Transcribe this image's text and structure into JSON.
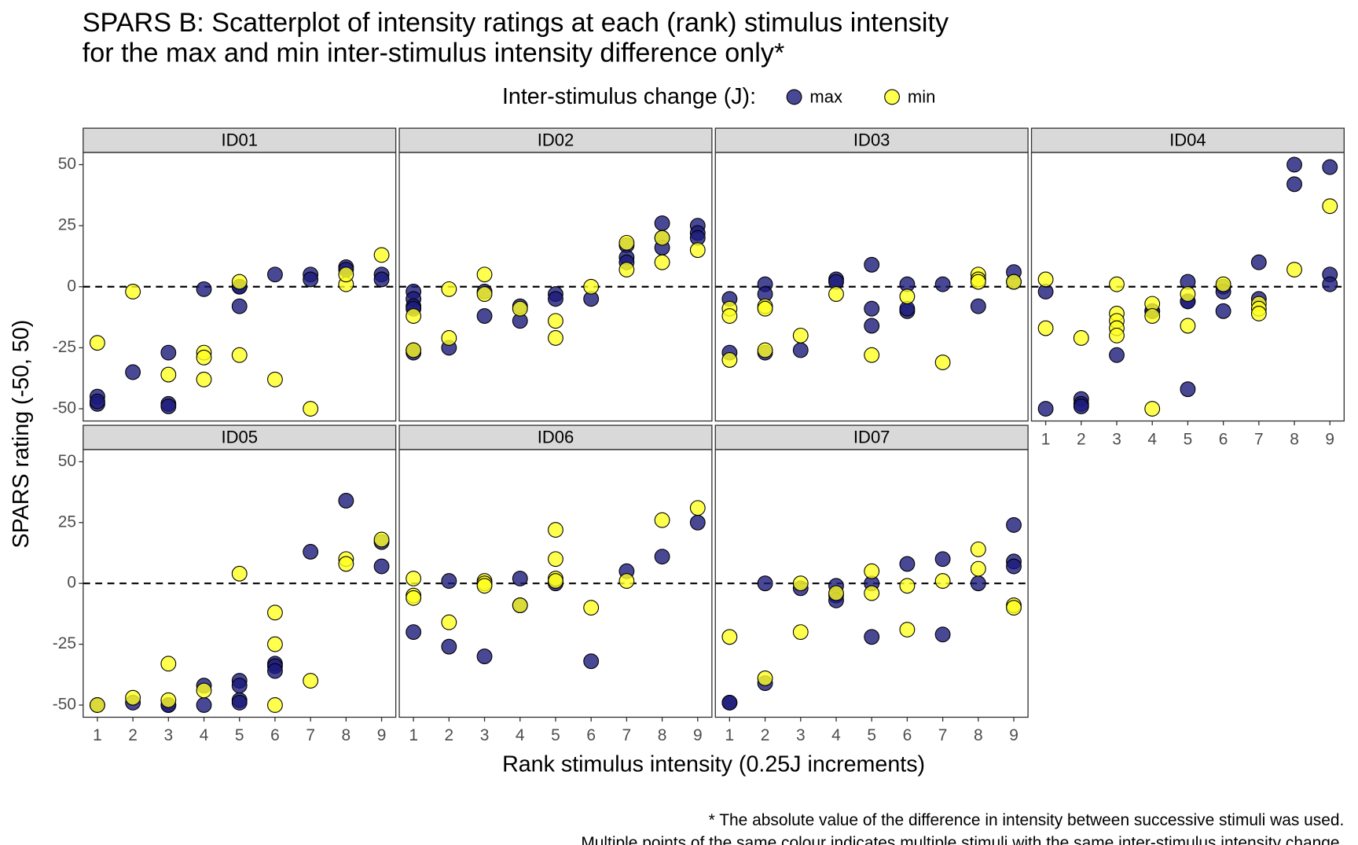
{
  "title": [
    "SPARS B: Scatterplot of intensity ratings at each (rank) stimulus intensity",
    "for the max and min inter-stimulus intensity difference only*"
  ],
  "legend": {
    "title": "Inter-stimulus change (J):",
    "entries": [
      {
        "name": "max",
        "color": "#1c1a7a"
      },
      {
        "name": "min",
        "color": "#ffff22"
      }
    ]
  },
  "point_alpha": 0.8,
  "x_label": "Rank stimulus intensity (0.25J increments)",
  "y_label": "SPARS rating (-50, 50)",
  "notes": [
    "* The absolute value of the difference in intensity between successive stimuli was used.",
    "Multiple points of the same colour indicates multiple stimuli with the same inter-stimulus intensity change."
  ],
  "chart_data": [
    {
      "type": "scatter",
      "title": "ID01",
      "xlim": [
        0.6,
        9.4
      ],
      "ylim": [
        -55,
        55
      ],
      "yticks": [
        -50,
        -25,
        0,
        25,
        50
      ],
      "hline": 0,
      "series": [
        {
          "x": [
            1,
            1,
            1,
            2,
            3,
            3,
            3,
            4,
            5,
            5,
            5,
            6,
            7,
            7,
            8,
            8,
            9,
            9
          ],
          "y": [
            -45,
            -48,
            -47,
            -35,
            -27,
            -48,
            -49,
            -1,
            0,
            -8,
            0,
            5,
            5,
            3,
            8,
            7,
            5,
            3
          ]
        },
        {
          "x": [
            1,
            2,
            3,
            4,
            4,
            4,
            5,
            5,
            6,
            7,
            8,
            8,
            9
          ],
          "y": [
            -23,
            -2,
            -36,
            -27,
            -29,
            -38,
            2,
            -28,
            -38,
            -50,
            1,
            5,
            13
          ]
        }
      ]
    },
    {
      "type": "scatter",
      "title": "ID02",
      "xlim": [
        0.6,
        9.4
      ],
      "ylim": [
        -55,
        55
      ],
      "hline": 0,
      "series": [
        {
          "x": [
            1,
            1,
            1,
            1,
            1,
            1,
            2,
            3,
            3,
            4,
            4,
            5,
            5,
            6,
            7,
            7,
            7,
            8,
            8,
            8,
            9,
            9,
            9
          ],
          "y": [
            -2,
            -5,
            -8,
            -9,
            -27,
            -26,
            -25,
            -2,
            -12,
            -8,
            -14,
            -3,
            -5,
            -5,
            17,
            12,
            10,
            26,
            20,
            16,
            25,
            22,
            20
          ]
        },
        {
          "x": [
            1,
            1,
            2,
            2,
            3,
            3,
            4,
            5,
            5,
            6,
            7,
            7,
            8,
            8,
            9
          ],
          "y": [
            -12,
            -26,
            -1,
            -21,
            5,
            -3,
            -9,
            -14,
            -21,
            0,
            18,
            7,
            20,
            10,
            15
          ]
        }
      ]
    },
    {
      "type": "scatter",
      "title": "ID03",
      "xlim": [
        0.6,
        9.4
      ],
      "ylim": [
        -55,
        55
      ],
      "hline": 0,
      "series": [
        {
          "x": [
            1,
            1,
            2,
            2,
            2,
            3,
            4,
            4,
            5,
            5,
            5,
            6,
            6,
            6,
            7,
            8,
            9,
            9
          ],
          "y": [
            -5,
            -27,
            1,
            -3,
            -27,
            -26,
            3,
            2,
            9,
            -9,
            -16,
            1,
            -10,
            -9,
            1,
            -8,
            6,
            2
          ]
        },
        {
          "x": [
            1,
            1,
            1,
            2,
            2,
            2,
            3,
            4,
            5,
            6,
            7,
            8,
            8,
            8,
            9
          ],
          "y": [
            -9,
            -12,
            -30,
            -8,
            -9,
            -26,
            -20,
            -3,
            -28,
            -4,
            -31,
            5,
            3,
            2,
            2
          ]
        }
      ]
    },
    {
      "type": "scatter",
      "title": "ID04",
      "xlim": [
        0.6,
        9.4
      ],
      "ylim": [
        -55,
        55
      ],
      "xticks": [
        1,
        2,
        3,
        4,
        5,
        6,
        7,
        8,
        9
      ],
      "hline": 0,
      "series": [
        {
          "x": [
            1,
            1,
            2,
            2,
            2,
            3,
            4,
            4,
            5,
            5,
            5,
            5,
            6,
            6,
            6,
            7,
            7,
            8,
            8,
            9,
            9,
            9
          ],
          "y": [
            -2,
            -50,
            -46,
            -48,
            -49,
            -28,
            -10,
            -10,
            2,
            -6,
            -6,
            -42,
            0,
            -2,
            -10,
            10,
            -5,
            50,
            42,
            49,
            5,
            1
          ]
        },
        {
          "x": [
            1,
            1,
            2,
            3,
            3,
            3,
            3,
            3,
            4,
            4,
            4,
            5,
            5,
            6,
            7,
            7,
            7,
            8,
            9
          ],
          "y": [
            3,
            -17,
            -21,
            1,
            -11,
            -14,
            -17,
            -20,
            -7,
            -12,
            -50,
            -3,
            -16,
            1,
            -7,
            -9,
            -11,
            7,
            33
          ]
        }
      ]
    },
    {
      "type": "scatter",
      "title": "ID05",
      "xlim": [
        0.6,
        9.4
      ],
      "ylim": [
        -55,
        55
      ],
      "xticks": [
        1,
        2,
        3,
        4,
        5,
        6,
        7,
        8,
        9
      ],
      "yticks": [
        -50,
        -25,
        0,
        25,
        50
      ],
      "hline": 0,
      "series": [
        {
          "x": [
            1,
            2,
            3,
            3,
            4,
            4,
            5,
            5,
            5,
            5,
            6,
            6,
            6,
            7,
            8,
            9,
            9
          ],
          "y": [
            -50,
            -49,
            -50,
            -50,
            -42,
            -50,
            -40,
            -42,
            -48,
            -49,
            -33,
            -34,
            -36,
            13,
            34,
            17,
            7
          ]
        },
        {
          "x": [
            1,
            2,
            3,
            3,
            4,
            5,
            6,
            6,
            6,
            7,
            8,
            8,
            9
          ],
          "y": [
            -50,
            -47,
            -33,
            -48,
            -44,
            4,
            -12,
            -25,
            -50,
            -40,
            10,
            8,
            18
          ]
        }
      ]
    },
    {
      "type": "scatter",
      "title": "ID06",
      "xlim": [
        0.6,
        9.4
      ],
      "ylim": [
        -55,
        55
      ],
      "xticks": [
        1,
        2,
        3,
        4,
        5,
        6,
        7,
        8,
        9
      ],
      "hline": 0,
      "series": [
        {
          "x": [
            1,
            2,
            2,
            3,
            4,
            4,
            5,
            5,
            6,
            7,
            8,
            9
          ],
          "y": [
            -20,
            1,
            -26,
            -30,
            2,
            -9,
            0,
            1,
            -32,
            5,
            11,
            25
          ]
        },
        {
          "x": [
            1,
            1,
            1,
            2,
            3,
            3,
            3,
            4,
            5,
            5,
            5,
            5,
            6,
            7,
            8,
            9
          ],
          "y": [
            2,
            -5,
            -6,
            -16,
            1,
            0,
            -1,
            -9,
            22,
            10,
            2,
            1,
            -10,
            1,
            26,
            31
          ]
        }
      ]
    },
    {
      "type": "scatter",
      "title": "ID07",
      "xlim": [
        0.6,
        9.4
      ],
      "ylim": [
        -55,
        55
      ],
      "xticks": [
        1,
        2,
        3,
        4,
        5,
        6,
        7,
        8,
        9
      ],
      "hline": 0,
      "series": [
        {
          "x": [
            1,
            1,
            2,
            2,
            3,
            4,
            4,
            4,
            5,
            5,
            6,
            7,
            7,
            8,
            9,
            9,
            9
          ],
          "y": [
            -49,
            -49,
            0,
            -41,
            -2,
            -1,
            -5,
            -7,
            0,
            -22,
            8,
            10,
            -21,
            0,
            24,
            9,
            7
          ]
        },
        {
          "x": [
            1,
            2,
            3,
            3,
            4,
            5,
            5,
            6,
            6,
            7,
            8,
            8,
            9,
            9
          ],
          "y": [
            -22,
            -39,
            0,
            -20,
            -4,
            5,
            -4,
            -1,
            -19,
            1,
            14,
            6,
            -9,
            -10
          ]
        }
      ]
    }
  ]
}
